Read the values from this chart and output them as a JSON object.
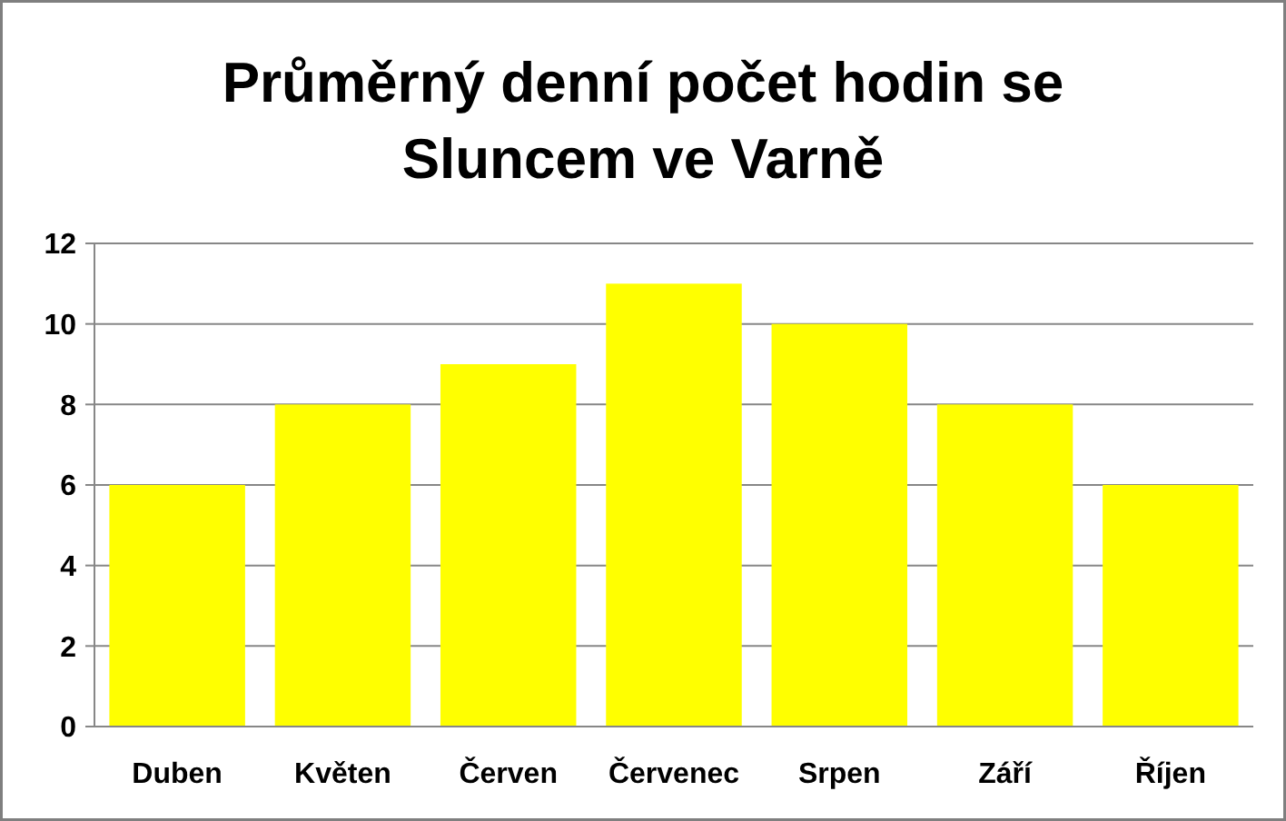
{
  "chart_data": {
    "type": "bar",
    "title": "Průměrný denní počet hodin se Sluncem ve Varně",
    "categories": [
      "Duben",
      "Květen",
      "Červen",
      "Červenec",
      "Srpen",
      "Září",
      "Říjen"
    ],
    "values": [
      6,
      8,
      9,
      11,
      10,
      8,
      6
    ],
    "color": "#ffff00",
    "ylim": [
      0,
      12
    ],
    "yticks": [
      0,
      2,
      4,
      6,
      8,
      10,
      12
    ],
    "grid": "y"
  }
}
